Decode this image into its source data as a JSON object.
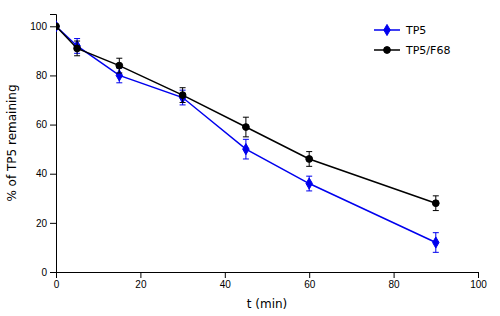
{
  "chart_data": {
    "type": "line",
    "xlabel": "t (min)",
    "ylabel": "% of TP5 remaining",
    "x": [
      0,
      5,
      15,
      30,
      45,
      60,
      90
    ],
    "series": [
      {
        "name": "TP5",
        "color": "#0000ee",
        "marker": "diamond",
        "values": [
          100,
          92,
          80,
          71,
          50,
          36,
          12
        ],
        "error": [
          0,
          3,
          3,
          3,
          4,
          3,
          4
        ]
      },
      {
        "name": "TP5/F68",
        "color": "#000000",
        "marker": "circle",
        "values": [
          100,
          91,
          84,
          72,
          59,
          46,
          28
        ],
        "error": [
          0,
          3,
          3,
          3,
          4,
          3,
          3
        ]
      }
    ],
    "xlim": [
      0,
      100
    ],
    "xticks": [
      0,
      20,
      40,
      60,
      80,
      100
    ],
    "ylim": [
      0,
      105
    ],
    "yticks": [
      0,
      20,
      40,
      60,
      80,
      100
    ],
    "grid": false,
    "legend": "upper right"
  }
}
